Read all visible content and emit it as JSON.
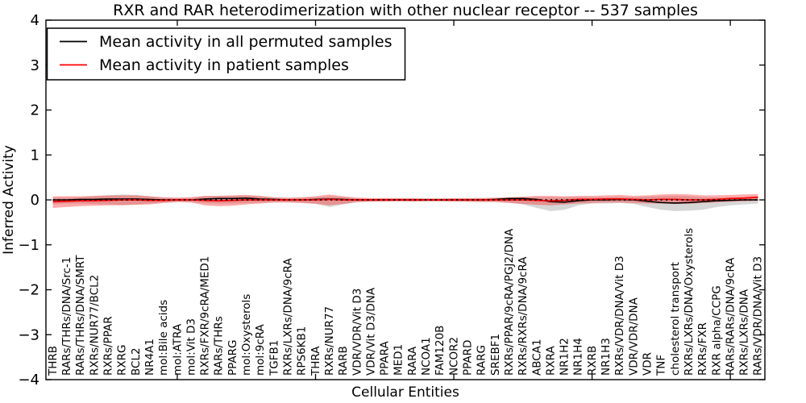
{
  "chart_data": {
    "type": "line",
    "title": "RXR and RAR heterodimerization with other nuclear receptor -- 537 samples",
    "xlabel": "Cellular Entities",
    "ylabel": "Inferred Activity",
    "ylim": [
      -4,
      4
    ],
    "yticks": [
      4,
      3,
      2,
      1,
      0,
      -1,
      -2,
      -3,
      -4
    ],
    "xtick_marked_indices": [
      9,
      19,
      29,
      39,
      49
    ],
    "grid": false,
    "legend_position": "upper left",
    "categories": [
      "THRB",
      "RARs/THRs/DNA/Src-1",
      "RARs/THRs/DNA/SMRT",
      "RXRs/NUR77/BCL2",
      "RXRs/PPAR",
      "RXRG",
      "BCL2",
      "NR4A1",
      "mol:Bile acids",
      "mol:ATRA",
      "mol:Vit D3",
      "RXRs/FXR/9cRA/MED1",
      "RARs/THRs",
      "PPARG",
      "mol:Oxysterols",
      "mol:9cRA",
      "TGFB1",
      "RXRs/LXRs/DNA/9cRA",
      "RPS6KB1",
      "THRA",
      "RXRs/NUR77",
      "RARB",
      "VDR/VDR/Vit D3",
      "VDR/Vit D3/DNA",
      "PPARA",
      "MED1",
      "RARA",
      "NCOA1",
      "FAM120B",
      "NCOR2",
      "PPARD",
      "RARG",
      "SREBF1",
      "RXRs/PPAR/9cRA/PGJ2/DNA",
      "RXRs/RXRs/DNA/9cRA",
      "ABCA1",
      "RXRA",
      "NR1H2",
      "NR1H4",
      "RXRB",
      "NR1H3",
      "RXRs/VDR/DNA/Vit D3",
      "VDR/VDR/DNA",
      "VDR",
      "TNF",
      "cholesterol transport",
      "RXRs/LXRs/DNA/Oxysterols",
      "RXRs/FXR",
      "RXR alpha/CCPG",
      "RARs/RARs/DNA/9cRA",
      "RXRs/LXRs/DNA",
      "RARs/VDR/DNA/Vit D3"
    ],
    "series": [
      {
        "name": "Mean activity in all permuted samples",
        "color": "#000000",
        "band_color": "rgba(128,128,128,0.32)",
        "values": [
          0.0,
          0.0,
          0.01,
          0.01,
          0.02,
          0.02,
          0.02,
          0.01,
          0.0,
          0.0,
          0.0,
          0.02,
          0.03,
          0.03,
          0.04,
          0.02,
          0.01,
          0.0,
          0.0,
          0.01,
          0.02,
          0.01,
          0.0,
          0.0,
          0.0,
          0.0,
          0.0,
          0.0,
          0.0,
          0.0,
          0.0,
          0.0,
          0.01,
          0.03,
          0.03,
          0.01,
          -0.04,
          -0.05,
          -0.02,
          0.0,
          0.0,
          0.01,
          0.0,
          -0.03,
          -0.06,
          -0.07,
          -0.06,
          -0.04,
          -0.02,
          -0.01,
          0.0,
          0.0
        ],
        "band_low": [
          -0.1,
          -0.08,
          -0.08,
          -0.09,
          -0.1,
          -0.11,
          -0.1,
          -0.08,
          -0.06,
          -0.04,
          -0.05,
          -0.07,
          -0.08,
          -0.08,
          -0.07,
          -0.06,
          -0.05,
          -0.05,
          -0.06,
          -0.08,
          -0.16,
          -0.1,
          -0.05,
          -0.04,
          -0.03,
          -0.03,
          -0.03,
          -0.03,
          -0.03,
          -0.03,
          -0.04,
          -0.04,
          -0.04,
          -0.06,
          -0.1,
          -0.18,
          -0.25,
          -0.22,
          -0.12,
          -0.08,
          -0.08,
          -0.07,
          -0.09,
          -0.16,
          -0.22,
          -0.25,
          -0.24,
          -0.22,
          -0.16,
          -0.12,
          -0.1,
          -0.08
        ],
        "band_high": [
          0.05,
          0.05,
          0.06,
          0.08,
          0.1,
          0.12,
          0.11,
          0.08,
          0.05,
          0.04,
          0.05,
          0.08,
          0.09,
          0.09,
          0.1,
          0.08,
          0.05,
          0.04,
          0.05,
          0.06,
          0.08,
          0.06,
          0.04,
          0.03,
          0.03,
          0.03,
          0.03,
          0.03,
          0.03,
          0.03,
          0.03,
          0.04,
          0.04,
          0.05,
          0.06,
          0.06,
          0.06,
          0.06,
          0.06,
          0.06,
          0.06,
          0.07,
          0.06,
          0.07,
          0.08,
          0.09,
          0.08,
          0.06,
          0.05,
          0.05,
          0.05,
          0.06
        ]
      },
      {
        "name": "Mean activity in patient samples",
        "color": "#ff0000",
        "band_color": "rgba(255,45,45,0.40)",
        "values": [
          -0.04,
          -0.03,
          -0.02,
          -0.02,
          -0.01,
          0.0,
          0.0,
          -0.01,
          -0.01,
          0.0,
          0.0,
          -0.01,
          -0.02,
          -0.01,
          0.0,
          0.0,
          0.0,
          0.0,
          0.0,
          0.0,
          0.01,
          0.0,
          0.0,
          0.0,
          0.0,
          0.0,
          0.0,
          0.0,
          0.0,
          0.0,
          0.0,
          0.0,
          0.0,
          0.0,
          0.0,
          -0.01,
          -0.02,
          -0.01,
          0.01,
          0.01,
          0.02,
          0.02,
          0.01,
          0.0,
          0.01,
          0.01,
          0.0,
          0.0,
          0.01,
          0.03,
          0.04,
          0.06
        ],
        "band_low": [
          -0.18,
          -0.16,
          -0.14,
          -0.13,
          -0.12,
          -0.12,
          -0.11,
          -0.1,
          -0.07,
          -0.05,
          -0.06,
          -0.12,
          -0.14,
          -0.13,
          -0.1,
          -0.08,
          -0.06,
          -0.06,
          -0.07,
          -0.09,
          -0.12,
          -0.09,
          -0.05,
          -0.04,
          -0.04,
          -0.03,
          -0.04,
          -0.03,
          -0.03,
          -0.04,
          -0.04,
          -0.05,
          -0.05,
          -0.07,
          -0.09,
          -0.11,
          -0.12,
          -0.1,
          -0.08,
          -0.07,
          -0.06,
          -0.06,
          -0.07,
          -0.08,
          -0.08,
          -0.09,
          -0.09,
          -0.07,
          -0.06,
          -0.04,
          -0.03,
          -0.02
        ],
        "band_high": [
          0.08,
          0.08,
          0.08,
          0.09,
          0.1,
          0.1,
          0.1,
          0.08,
          0.06,
          0.05,
          0.06,
          0.09,
          0.09,
          0.1,
          0.11,
          0.09,
          0.06,
          0.05,
          0.06,
          0.08,
          0.12,
          0.08,
          0.05,
          0.04,
          0.04,
          0.04,
          0.04,
          0.03,
          0.03,
          0.04,
          0.04,
          0.04,
          0.05,
          0.06,
          0.07,
          0.09,
          0.09,
          0.08,
          0.09,
          0.09,
          0.1,
          0.11,
          0.09,
          0.1,
          0.12,
          0.13,
          0.12,
          0.1,
          0.1,
          0.11,
          0.12,
          0.13
        ]
      }
    ],
    "zero_line": {
      "value": 0,
      "style": "dotted",
      "color": "#000000"
    }
  },
  "colors": {
    "background": "#ffffff",
    "spine": "#000000"
  }
}
